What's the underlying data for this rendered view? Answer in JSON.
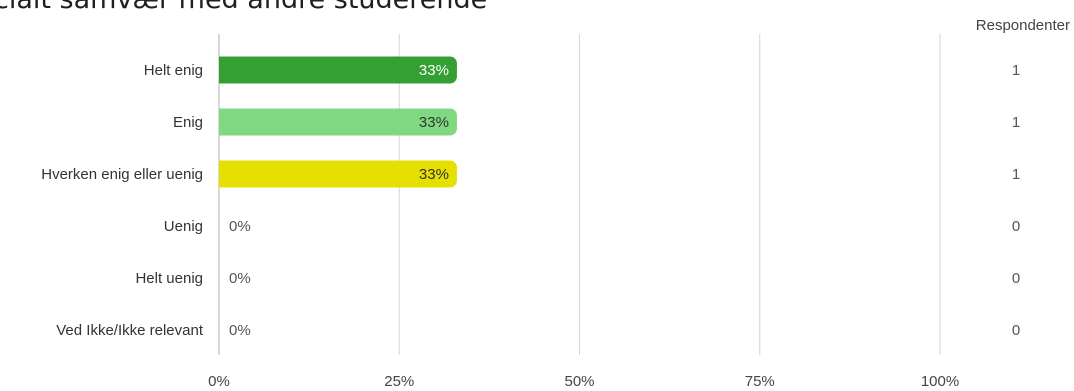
{
  "title": "ciait samvær med andre studerende",
  "chart_data": {
    "type": "bar",
    "orientation": "horizontal",
    "categories": [
      "Helt enig",
      "Enig",
      "Hverken enig eller uenig",
      "Uenig",
      "Helt uenig",
      "Ved Ikke/Ikke relevant"
    ],
    "values": [
      33,
      33,
      33,
      0,
      0,
      0
    ],
    "value_labels": [
      "33%",
      "33%",
      "33%",
      "0%",
      "0%",
      "0%"
    ],
    "colors": [
      "#34a033",
      "#80d880",
      "#e6e000",
      "#cccccc",
      "#cccccc",
      "#cccccc"
    ],
    "bar_label_colors": [
      "#ffffff",
      "#333333",
      "#333333",
      "#555555",
      "#555555",
      "#555555"
    ],
    "xlim": [
      0,
      100
    ],
    "xticks": [
      "0%",
      "25%",
      "50%",
      "75%",
      "100%"
    ],
    "grid": true,
    "respondents_header": "Respondenter",
    "respondents": [
      "1",
      "1",
      "1",
      "0",
      "0",
      "0"
    ]
  }
}
